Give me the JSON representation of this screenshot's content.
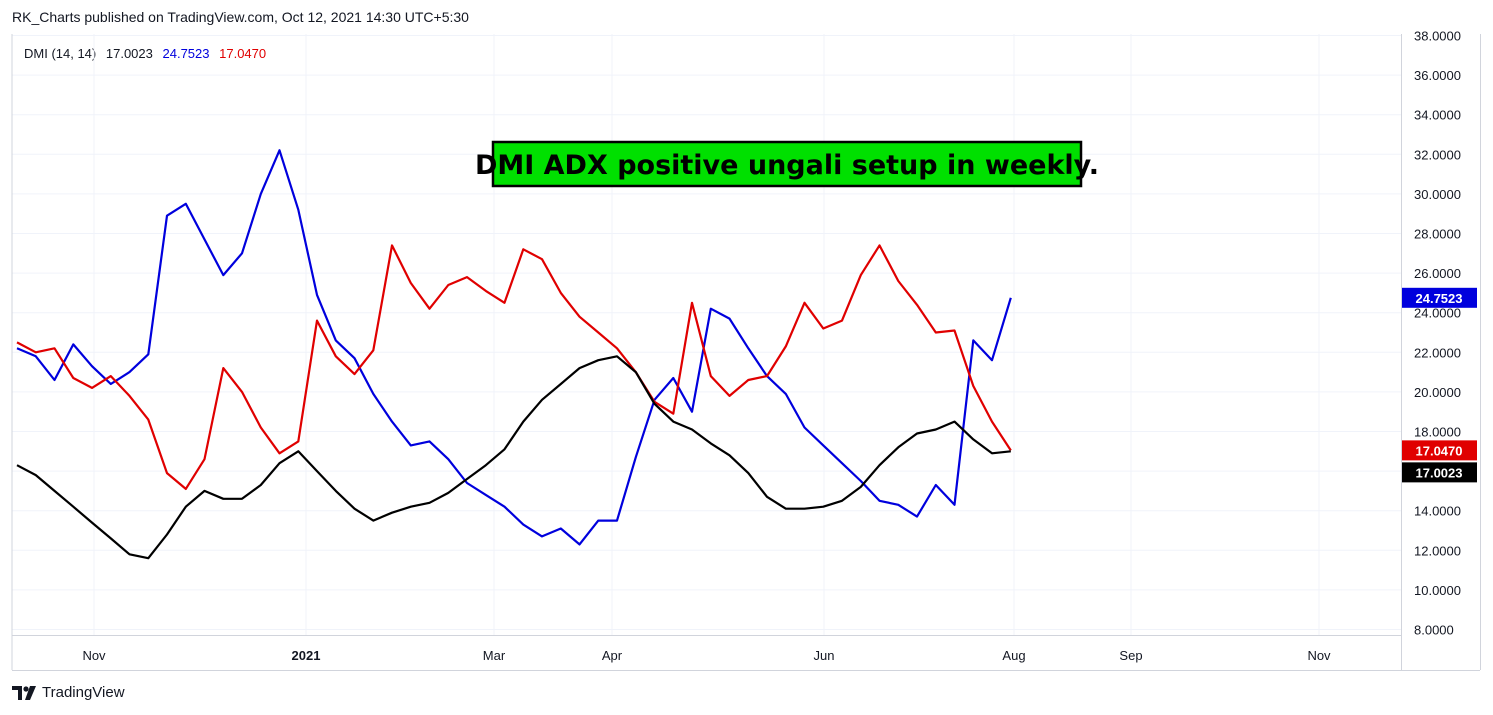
{
  "header": {
    "published": "RK_Charts published on TradingView.com, Oct 12, 2021 14:30 UTC+5:30"
  },
  "legend": {
    "name": "DMI (14, 14)",
    "adx": "17.0023",
    "plus_di": "24.7523",
    "minus_di": "17.0470"
  },
  "footer": {
    "watermark": "TradingView"
  },
  "colors": {
    "plus_di": "#0000dd",
    "minus_di": "#e00000",
    "adx": "#000000",
    "annotation_bg": "#00e000",
    "grid": "#f0f3fa",
    "text": "#131722"
  },
  "chart_data": {
    "type": "line",
    "annotation": "DMI ADX positive ungali setup in weekly.",
    "ylim": [
      8,
      38
    ],
    "yticks": [
      "8.0000",
      "10.0000",
      "12.0000",
      "14.0000",
      "16.0000",
      "18.0000",
      "20.0000",
      "22.0000",
      "24.0000",
      "26.0000",
      "28.0000",
      "30.0000",
      "32.0000",
      "34.0000",
      "36.0000",
      "38.0000"
    ],
    "xlabels": [
      "Nov",
      "2021",
      "Mar",
      "Apr",
      "Jun",
      "Aug",
      "Sep",
      "Nov"
    ],
    "price_labels": [
      {
        "series": "+DI",
        "text": "24.7523",
        "value": 24.7523
      },
      {
        "series": "-DI",
        "text": "17.0470",
        "value": 17.047
      },
      {
        "series": "ADX",
        "text": "17.0023",
        "value": 17.0023
      }
    ],
    "x": [
      "2020-10-05",
      "2020-10-12",
      "2020-10-19",
      "2020-10-26",
      "2020-11-02",
      "2020-11-09",
      "2020-11-16",
      "2020-11-23",
      "2020-11-30",
      "2020-12-07",
      "2020-12-14",
      "2020-12-21",
      "2020-12-28",
      "2021-01-04",
      "2021-01-11",
      "2021-01-18",
      "2021-01-25",
      "2021-02-01",
      "2021-02-08",
      "2021-02-15",
      "2021-02-22",
      "2021-03-01",
      "2021-03-08",
      "2021-03-15",
      "2021-03-22",
      "2021-03-29",
      "2021-04-05",
      "2021-04-12",
      "2021-04-19",
      "2021-04-26",
      "2021-05-03",
      "2021-05-10",
      "2021-05-17",
      "2021-05-24",
      "2021-05-31",
      "2021-06-07",
      "2021-06-14",
      "2021-06-21",
      "2021-06-28",
      "2021-07-05",
      "2021-07-12",
      "2021-07-19",
      "2021-07-26",
      "2021-08-02",
      "2021-08-09",
      "2021-08-16",
      "2021-08-23",
      "2021-08-30",
      "2021-09-06",
      "2021-09-13",
      "2021-09-20",
      "2021-09-27",
      "2021-10-04",
      "2021-10-11"
    ],
    "series": [
      {
        "name": "+DI",
        "color": "#0000dd",
        "values": [
          22.2,
          21.8,
          20.6,
          22.4,
          21.3,
          20.4,
          21.0,
          21.9,
          28.9,
          29.5,
          27.7,
          25.9,
          27.0,
          30.0,
          32.2,
          29.2,
          24.9,
          22.6,
          21.7,
          19.9,
          18.5,
          17.3,
          17.5,
          16.6,
          15.4,
          14.8,
          14.2,
          13.3,
          12.7,
          13.1,
          12.3,
          13.5,
          13.5,
          16.7,
          19.6,
          20.7,
          19.0,
          24.2,
          23.7,
          22.2,
          20.8,
          19.9,
          18.2,
          17.3,
          16.4,
          15.5,
          14.5,
          14.3,
          13.7,
          15.3,
          14.3,
          22.6,
          21.6,
          24.7523
        ]
      },
      {
        "name": "-DI",
        "color": "#e00000",
        "values": [
          22.5,
          22.0,
          22.2,
          20.7,
          20.2,
          20.8,
          19.8,
          18.6,
          15.9,
          15.1,
          16.6,
          21.2,
          20.0,
          18.2,
          16.9,
          17.5,
          23.6,
          21.8,
          20.9,
          22.1,
          27.4,
          25.5,
          24.2,
          25.4,
          25.8,
          25.1,
          24.5,
          27.2,
          26.7,
          25.0,
          23.8,
          23.0,
          22.2,
          21.0,
          19.5,
          18.9,
          24.5,
          20.8,
          19.8,
          20.6,
          20.8,
          22.3,
          24.5,
          23.2,
          23.6,
          25.9,
          27.4,
          25.6,
          24.4,
          23.0,
          23.1,
          20.3,
          18.5,
          17.047
        ]
      },
      {
        "name": "ADX",
        "color": "#000000",
        "values": [
          16.3,
          15.8,
          15.0,
          14.2,
          13.4,
          12.6,
          11.8,
          11.6,
          12.8,
          14.2,
          15.0,
          14.6,
          14.6,
          15.3,
          16.4,
          17.0,
          16.0,
          15.0,
          14.1,
          13.5,
          13.9,
          14.2,
          14.4,
          14.9,
          15.6,
          16.3,
          17.1,
          18.5,
          19.6,
          20.4,
          21.2,
          21.6,
          21.8,
          21.0,
          19.4,
          18.5,
          18.1,
          17.4,
          16.8,
          15.9,
          14.7,
          14.1,
          14.1,
          14.2,
          14.5,
          15.2,
          16.3,
          17.2,
          17.9,
          18.1,
          18.5,
          17.6,
          16.9,
          17.0023
        ]
      }
    ]
  }
}
